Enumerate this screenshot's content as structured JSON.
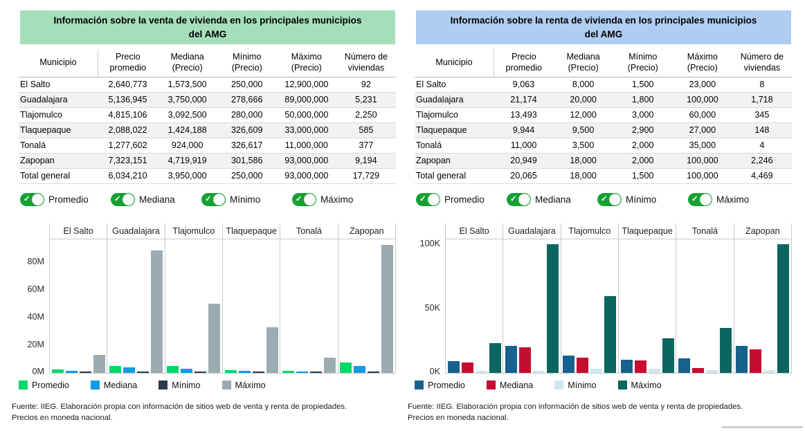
{
  "panels": [
    {
      "id": "venta",
      "title_line1": "Información sobre la venta de vivienda en los principales municipios",
      "title_line2": "del AMG",
      "header_bg": "#a5dfba",
      "toggle_color": "#17a034",
      "table": {
        "columns": [
          "Municipio",
          "Precio promedio",
          "Mediana (Precio)",
          "Mínimo (Precio)",
          "Máximo (Precio)",
          "Número de viviendas"
        ],
        "rows": [
          [
            "El Salto",
            "2,640,773",
            "1,573,500",
            "250,000",
            "12,900,000",
            "92"
          ],
          [
            "Guadalajara",
            "5,136,945",
            "3,750,000",
            "278,666",
            "89,000,000",
            "5,231"
          ],
          [
            "Tlajomulco",
            "4,815,106",
            "3,092,500",
            "280,000",
            "50,000,000",
            "2,250"
          ],
          [
            "Tlaquepaque",
            "2,088,022",
            "1,424,188",
            "326,609",
            "33,000,000",
            "585"
          ],
          [
            "Tonalá",
            "1,277,602",
            "924,000",
            "326,617",
            "11,000,000",
            "377"
          ],
          [
            "Zapopan",
            "7,323,151",
            "4,719,919",
            "301,586",
            "93,000,000",
            "9,194"
          ],
          [
            "Total general",
            "6,034,210",
            "3,950,000",
            "250,000",
            "93,000,000",
            "17,729"
          ]
        ]
      },
      "toggles": [
        {
          "label": "Promedio",
          "state": "on"
        },
        {
          "label": "Mediana",
          "state": "on"
        },
        {
          "label": "Mínimo",
          "state": "on"
        },
        {
          "label": "Máximo",
          "state": "on"
        }
      ],
      "legend": [
        {
          "label": "Promedio",
          "color": "#00d76a"
        },
        {
          "label": "Mediana",
          "color": "#0d9be4"
        },
        {
          "label": "Mínimo",
          "color": "#2b3a4f"
        },
        {
          "label": "Máximo",
          "color": "#9aacb2"
        }
      ],
      "footer_line1": "Fuente: IIEG. Elaboración propia con información de sitios web de venta y renta de propiedades.",
      "footer_line2": "Precios en moneda nacional."
    },
    {
      "id": "renta",
      "title_line1": "Información sobre la renta de vivienda en los principales municipios",
      "title_line2": "del AMG",
      "header_bg": "#afcdf0",
      "toggle_color": "#17a034",
      "table": {
        "columns": [
          "Municipio",
          "Precio promedio",
          "Mediana (Precio)",
          "Mínimo (Precio)",
          "Máximo (Precio)",
          "Número de viviendas"
        ],
        "rows": [
          [
            "El Salto",
            "9,063",
            "8,000",
            "1,500",
            "23,000",
            "8"
          ],
          [
            "Guadalajara",
            "21,174",
            "20,000",
            "1,800",
            "100,000",
            "1,718"
          ],
          [
            "Tlajomulco",
            "13,493",
            "12,000",
            "3,000",
            "60,000",
            "345"
          ],
          [
            "Tlaquepaque",
            "9,944",
            "9,500",
            "2,900",
            "27,000",
            "148"
          ],
          [
            "Tonalá",
            "11,000",
            "3,500",
            "2,000",
            "35,000",
            "4"
          ],
          [
            "Zapopan",
            "20,949",
            "18,000",
            "2,000",
            "100,000",
            "2,246"
          ],
          [
            "Total general",
            "20,065",
            "18,000",
            "1,500",
            "100,000",
            "4,469"
          ]
        ]
      },
      "toggles": [
        {
          "label": "Promedio",
          "state": "on"
        },
        {
          "label": "Mediana",
          "state": "on"
        },
        {
          "label": "Mínimo",
          "state": "on"
        },
        {
          "label": "Máximo",
          "state": "on"
        }
      ],
      "legend": [
        {
          "label": "Promedio",
          "color": "#17618f"
        },
        {
          "label": "Mediana",
          "color": "#c60c30"
        },
        {
          "label": "Mínimo",
          "color": "#cfe8ef"
        },
        {
          "label": "Máximo",
          "color": "#0c665f"
        }
      ],
      "footer_line1": "Fuente: IIEG. Elaboración propia con información de sitios web de venta y renta de propiedades.",
      "footer_line2": "Precios en moneda nacional."
    }
  ],
  "chart_data": [
    {
      "type": "bar",
      "title": "Información sobre la venta de vivienda en los principales municipios del AMG",
      "categories": [
        "El Salto",
        "Guadalajara",
        "Tlajomulco",
        "Tlaquepaque",
        "Tonalá",
        "Zapopan"
      ],
      "series": [
        {
          "name": "Promedio",
          "color": "#00d76a",
          "values": [
            2640773,
            5136945,
            4815106,
            2088022,
            1277602,
            7323151
          ]
        },
        {
          "name": "Mediana",
          "color": "#0d9be4",
          "values": [
            1573500,
            3750000,
            3092500,
            1424188,
            924000,
            4719919
          ]
        },
        {
          "name": "Mínimo",
          "color": "#2b3a4f",
          "values": [
            250000,
            278666,
            280000,
            326609,
            326617,
            301586
          ]
        },
        {
          "name": "Máximo",
          "color": "#9aacb2",
          "values": [
            12900000,
            89000000,
            50000000,
            33000000,
            11000000,
            93000000
          ]
        }
      ],
      "y_ticks": [
        {
          "value": 0,
          "label": "0M"
        },
        {
          "value": 20000000,
          "label": "20M"
        },
        {
          "value": 40000000,
          "label": "40M"
        },
        {
          "value": 60000000,
          "label": "60M"
        },
        {
          "value": 80000000,
          "label": "80M"
        }
      ],
      "ylim": [
        0,
        97000000
      ],
      "grid": false,
      "legend_position": "bottom"
    },
    {
      "type": "bar",
      "title": "Información sobre la renta de vivienda en los principales municipios del AMG",
      "categories": [
        "El Salto",
        "Guadalajara",
        "Tlajomulco",
        "Tlaquepaque",
        "Tonalá",
        "Zapopan"
      ],
      "series": [
        {
          "name": "Promedio",
          "color": "#17618f",
          "values": [
            9063,
            21174,
            13493,
            9944,
            11000,
            20949
          ]
        },
        {
          "name": "Mediana",
          "color": "#c60c30",
          "values": [
            8000,
            20000,
            12000,
            9500,
            3500,
            18000
          ]
        },
        {
          "name": "Mínimo",
          "color": "#cfe8ef",
          "values": [
            1500,
            1800,
            3000,
            2900,
            2000,
            2000
          ]
        },
        {
          "name": "Máximo",
          "color": "#0c665f",
          "values": [
            23000,
            100000,
            60000,
            27000,
            35000,
            100000
          ]
        }
      ],
      "y_ticks": [
        {
          "value": 0,
          "label": "0K"
        },
        {
          "value": 50000,
          "label": "50K"
        },
        {
          "value": 100000,
          "label": "100K"
        }
      ],
      "ylim": [
        0,
        104000
      ],
      "grid": false,
      "legend_position": "bottom"
    }
  ]
}
